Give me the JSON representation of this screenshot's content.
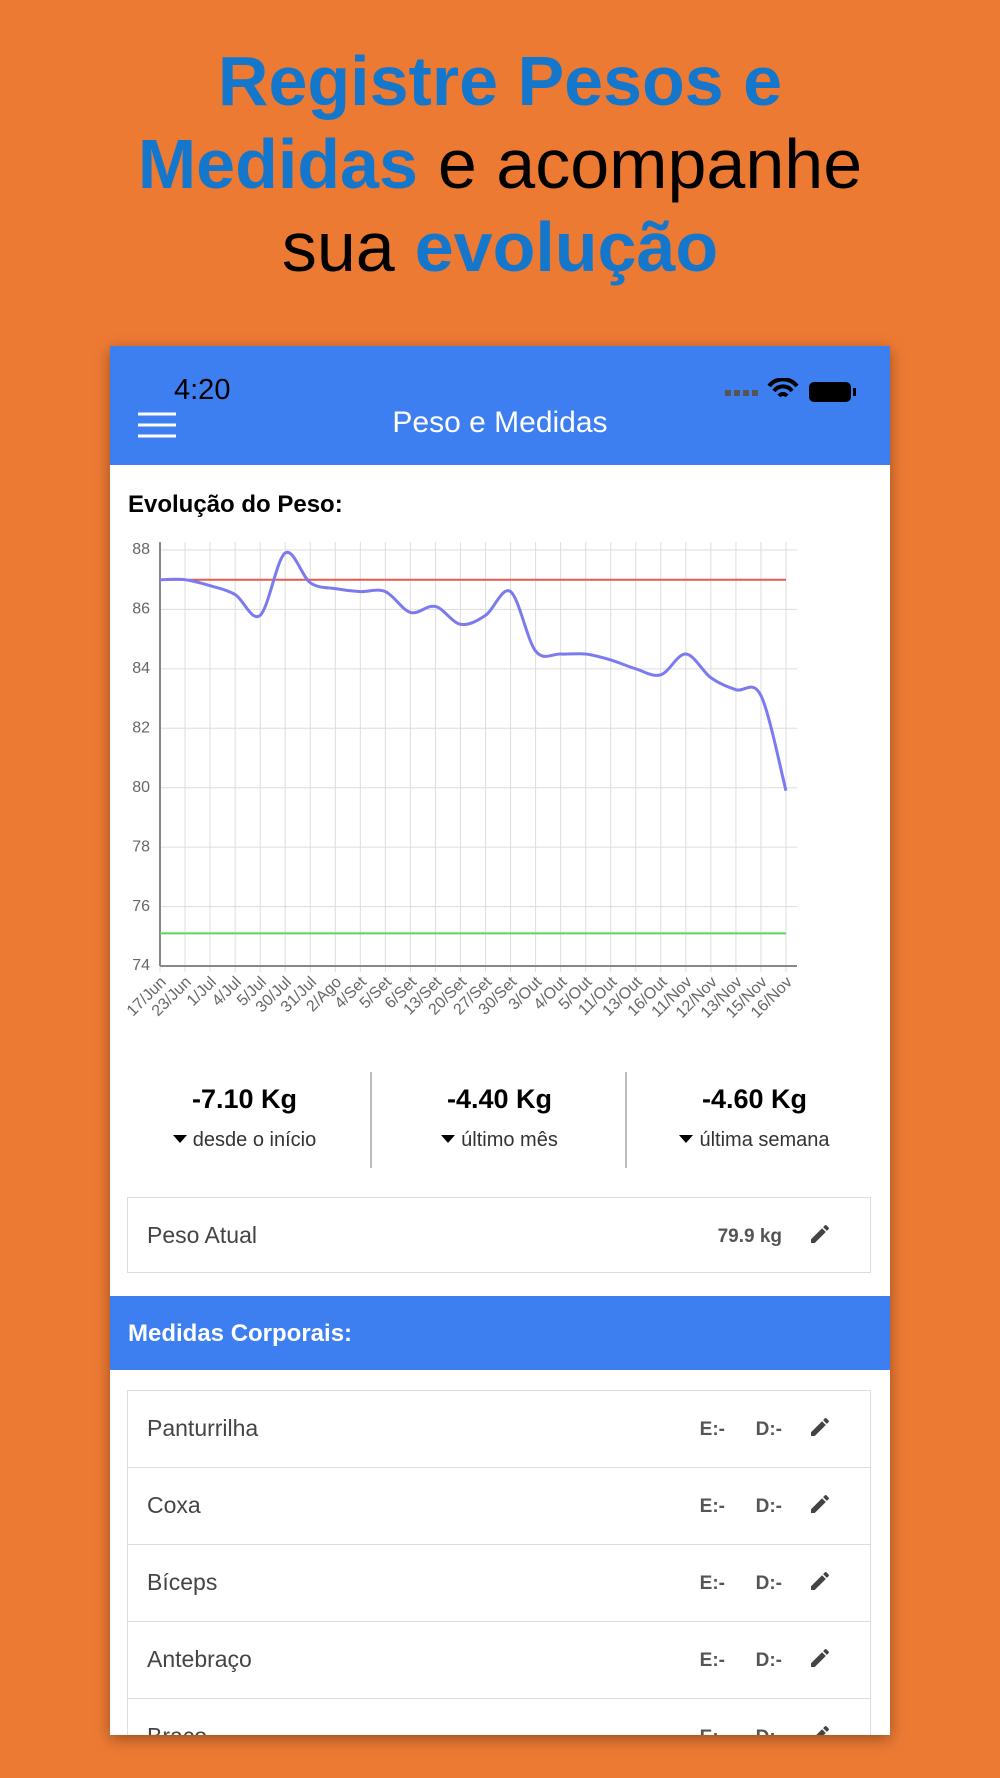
{
  "headline": {
    "lines": [
      [
        {
          "text": "Registre Pesos e",
          "highlight": true
        }
      ],
      [
        {
          "text": "Medidas",
          "highlight": true
        },
        {
          "text": "e acompanhe",
          "highlight": false
        }
      ],
      [
        {
          "text": "sua",
          "highlight": false
        },
        {
          "text": "evolução",
          "highlight": true
        }
      ]
    ]
  },
  "status_bar": {
    "time": "4:20"
  },
  "app_bar": {
    "title": "Peso e Medidas"
  },
  "chart_data": {
    "type": "line",
    "title": "Evolução do Peso:",
    "categories": [
      "17/Jun",
      "23/Jun",
      "1/Jul",
      "4/Jul",
      "5/Jul",
      "30/Jul",
      "31/Jul",
      "2/Ago",
      "4/Set",
      "5/Set",
      "6/Set",
      "13/Set",
      "20/Set",
      "27/Set",
      "30/Set",
      "3/Out",
      "4/Out",
      "5/Out",
      "11/Out",
      "13/Out",
      "16/Out",
      "11/Nov",
      "12/Nov",
      "13/Nov",
      "15/Nov",
      "16/Nov"
    ],
    "series": [
      {
        "color": "#7b7bef",
        "values": [
          87,
          87,
          86.8,
          86.5,
          85.8,
          87.9,
          86.9,
          86.7,
          86.6,
          86.6,
          85.9,
          86.1,
          85.5,
          85.8,
          86.6,
          84.6,
          84.5,
          84.5,
          84.3,
          84.0,
          83.8,
          84.5,
          83.7,
          83.3,
          83.1,
          79.9
        ]
      }
    ],
    "reference_lines": [
      {
        "value": 87,
        "color": "#e8594e"
      },
      {
        "value": 75.1,
        "color": "#5ad65a"
      }
    ],
    "ylim": [
      74,
      88
    ],
    "yticks": [
      74,
      76,
      78,
      80,
      82,
      84,
      86,
      88
    ],
    "grid": true
  },
  "stats": [
    {
      "value": "-7.10 Kg",
      "label": "desde o início"
    },
    {
      "value": "-4.40 Kg",
      "label": "último mês"
    },
    {
      "value": "-4.60 Kg",
      "label": "última semana"
    }
  ],
  "current_weight": {
    "label": "Peso Atual",
    "value": "79.9 kg"
  },
  "measurements": {
    "title": "Medidas Corporais:",
    "rows": [
      {
        "name": "Panturrilha",
        "left": "E:-",
        "right": "D:-"
      },
      {
        "name": "Coxa",
        "left": "E:-",
        "right": "D:-"
      },
      {
        "name": "Bíceps",
        "left": "E:-",
        "right": "D:-"
      },
      {
        "name": "Antebraço",
        "left": "E:-",
        "right": "D:-"
      },
      {
        "name": "Braço",
        "left": "E:-",
        "right": "D:-"
      }
    ]
  }
}
